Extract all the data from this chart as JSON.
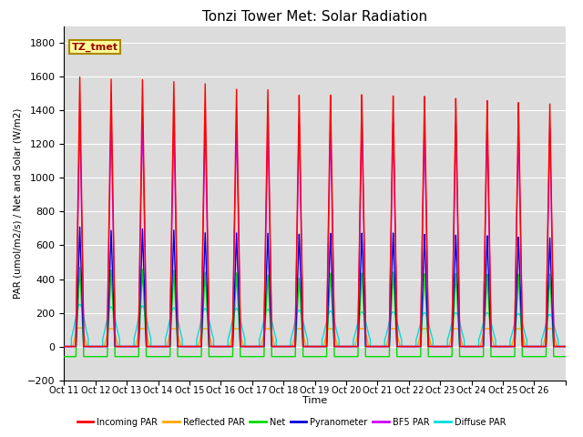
{
  "title": "Tonzi Tower Met: Solar Radiation",
  "ylabel": "PAR (umol/m2/s) / Net and Solar (W/m2)",
  "xlabel": "Time",
  "annotation": "TZ_tmet",
  "ylim": [
    -200,
    1900
  ],
  "yticks": [
    -200,
    0,
    200,
    400,
    600,
    800,
    1000,
    1200,
    1400,
    1600,
    1800
  ],
  "n_days": 16,
  "x_tick_labels": [
    "Oct 11",
    "Oct 12",
    "Oct 13",
    "Oct 14",
    "Oct 15",
    "Oct 16",
    "Oct 17",
    "Oct 18",
    "Oct 19",
    "Oct 20",
    "Oct 21",
    "Oct 22",
    "Oct 23",
    "Oct 24",
    "Oct 25",
    "Oct 26"
  ],
  "series": {
    "incoming_par": {
      "color": "#FF0000",
      "label": "Incoming PAR",
      "lw": 1.0
    },
    "reflected_par": {
      "color": "#FFA500",
      "label": "Reflected PAR",
      "lw": 1.0
    },
    "net": {
      "color": "#00DD00",
      "label": "Net",
      "lw": 1.0
    },
    "pyranometer": {
      "color": "#0000DD",
      "label": "Pyranometer",
      "lw": 1.0
    },
    "bf5_par": {
      "color": "#CC00FF",
      "label": "BF5 PAR",
      "lw": 1.0
    },
    "diffuse_par": {
      "color": "#00DDDD",
      "label": "Diffuse PAR",
      "lw": 1.0
    }
  },
  "background_color": "#DCDCDC",
  "figure_facecolor": "#FFFFFF",
  "incoming_peaks": [
    1600,
    1590,
    1590,
    1580,
    1570,
    1540,
    1540,
    1510,
    1510,
    1510,
    1500,
    1495,
    1480,
    1465,
    1450,
    1440
  ],
  "pyranometer_peaks": [
    710,
    690,
    700,
    695,
    680,
    680,
    680,
    675,
    680,
    680,
    680,
    670,
    665,
    660,
    650,
    645
  ],
  "bf5_peaks": [
    1390,
    1380,
    1380,
    1375,
    1365,
    1355,
    1350,
    1340,
    1340,
    1350,
    1340,
    1335,
    1325,
    1310,
    1300,
    1295
  ],
  "diffuse_peaks": [
    250,
    235,
    240,
    230,
    225,
    225,
    220,
    215,
    210,
    205,
    205,
    200,
    200,
    200,
    195,
    190
  ],
  "reflected_peaks": [
    110,
    105,
    105,
    105,
    105,
    105,
    105,
    105,
    105,
    105,
    105,
    105,
    105,
    105,
    105,
    105
  ],
  "net_peaks": [
    470,
    455,
    460,
    455,
    445,
    440,
    430,
    410,
    440,
    440,
    445,
    435,
    435,
    430,
    430,
    430
  ],
  "net_night": -60
}
